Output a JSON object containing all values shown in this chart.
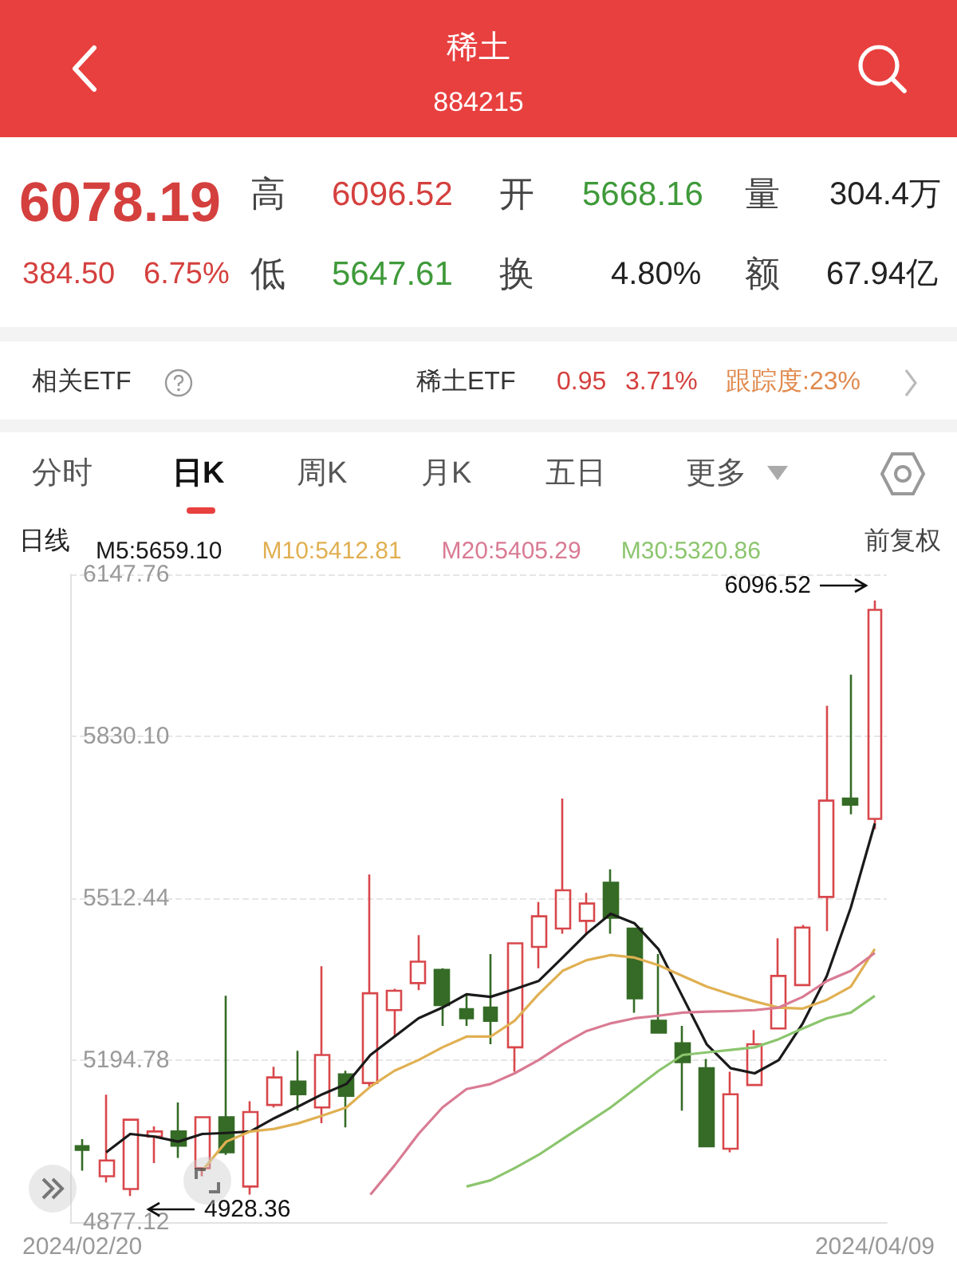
{
  "chart_data": [
    {
      "type": "other",
      "title": "稀土",
      "subtitle": "884215",
      "annotations": [
        "6078.19",
        "384.50",
        "6.75%",
        "高",
        "6096.52",
        "开",
        "5668.16",
        "量",
        "304.4万",
        "低",
        "5647.61",
        "换",
        "4.80%",
        "额",
        "67.94亿",
        "相关ETF",
        "稀土ETF",
        "0.95",
        "3.71%",
        "跟踪度:23%",
        "分时",
        "日K",
        "周K",
        "月K",
        "五日",
        "更多"
      ]
    },
    {
      "type": "candlestick",
      "categories": [
        "2024/02/20",
        null,
        null,
        null,
        null,
        null,
        null,
        null,
        null,
        null,
        null,
        null,
        null,
        null,
        null,
        null,
        null,
        null,
        null,
        null,
        null,
        null,
        null,
        null,
        null,
        null,
        null,
        null,
        null,
        null,
        null,
        null,
        null,
        "2024/04/09"
      ],
      "ohlc": [
        [
          5026,
          5040,
          4978,
          5019
        ],
        [
          4967,
          5127,
          4955,
          4998
        ],
        [
          4942,
          5078,
          4928.36,
          5078
        ],
        [
          5045,
          5065,
          4993,
          5055
        ],
        [
          5055,
          5112,
          5003,
          5027
        ],
        [
          4983,
          5083,
          4967,
          5083
        ],
        [
          5083,
          5321,
          5009,
          5014
        ],
        [
          4947,
          5114,
          4931,
          5093
        ],
        [
          5107,
          5182,
          5102,
          5161
        ],
        [
          5153,
          5213,
          5096,
          5128
        ],
        [
          5102,
          5379,
          5071,
          5205
        ],
        [
          5167,
          5174,
          5063,
          5125
        ],
        [
          5150,
          5559,
          5143,
          5326
        ],
        [
          5293,
          5335,
          5241,
          5331
        ],
        [
          5346,
          5440,
          5332,
          5388
        ],
        [
          5372,
          5375,
          5262,
          5303
        ],
        [
          5295,
          5324,
          5262,
          5277
        ],
        [
          5298,
          5403,
          5226,
          5272
        ],
        [
          5220,
          5424,
          5172,
          5424
        ],
        [
          5417,
          5505,
          5375,
          5477
        ],
        [
          5453,
          5708,
          5443,
          5528
        ],
        [
          5468,
          5523,
          5443,
          5502
        ],
        [
          5543,
          5569,
          5443,
          5474
        ],
        [
          5453,
          5453,
          5288,
          5316
        ],
        [
          5272,
          5403,
          5249,
          5249
        ],
        [
          5228,
          5262,
          5096,
          5191
        ],
        [
          5179,
          5197,
          5026,
          5026
        ],
        [
          5021,
          5172,
          5014,
          5128
        ],
        [
          5146,
          5254,
          5146,
          5226
        ],
        [
          5257,
          5434,
          5257,
          5360
        ],
        [
          5342,
          5460,
          5342,
          5455
        ],
        [
          5515,
          5890,
          5448,
          5704
        ],
        [
          5708,
          5951,
          5677,
          5696
        ],
        [
          5668.16,
          6096.52,
          5647.61,
          6078.19
        ]
      ],
      "series": [
        {
          "type": "line",
          "name": "M5:5659.10",
          "color": "#1a1a1a",
          "values": [
            null,
            5014,
            5050,
            5045,
            5035,
            5050,
            5052,
            5055,
            5081,
            5104,
            5128,
            5148,
            5205,
            5241,
            5277,
            5298,
            5324,
            5319,
            5334,
            5350,
            5396,
            5443,
            5482,
            5463,
            5412,
            5319,
            5226,
            5179,
            5169,
            5195,
            5267,
            5360,
            5494,
            5659.1
          ]
        },
        {
          "type": "line",
          "name": "M10:5412.81",
          "color": "#e0b052",
          "values": [
            null,
            null,
            null,
            null,
            null,
            4978,
            5035,
            5055,
            5060,
            5071,
            5086,
            5102,
            5143,
            5174,
            5195,
            5220,
            5241,
            5241,
            5272,
            5324,
            5370,
            5391,
            5401,
            5396,
            5381,
            5360,
            5339,
            5324,
            5310,
            5298,
            5296,
            5313,
            5339,
            5412.81
          ]
        },
        {
          "type": "line",
          "name": "M20:5405.29",
          "color": "#d97b93",
          "values": [
            null,
            null,
            null,
            null,
            null,
            null,
            null,
            null,
            null,
            null,
            null,
            null,
            4931,
            4988,
            5050,
            5102,
            5138,
            5148,
            5169,
            5195,
            5226,
            5252,
            5267,
            5277,
            5282,
            5288,
            5290,
            5291,
            5293,
            5298,
            5319,
            5350,
            5370,
            5405.29
          ]
        },
        {
          "type": "line",
          "name": "M30:5320.86",
          "color": "#8cc56e",
          "values": [
            null,
            null,
            null,
            null,
            null,
            null,
            null,
            null,
            null,
            null,
            null,
            null,
            null,
            null,
            null,
            null,
            4947,
            4959,
            4983,
            5009,
            5040,
            5071,
            5102,
            5138,
            5174,
            5205,
            5210,
            5215,
            5220,
            5236,
            5257,
            5277,
            5288,
            5320.86
          ]
        }
      ],
      "ylim": [
        4877.12,
        6147.76
      ],
      "yticks": [
        4877.12,
        5194.78,
        5512.44,
        {
          "value": 5830.1,
          "label": "5830.10"
        },
        6147.76
      ],
      "grid": "y",
      "legend": "top left",
      "marker": "none",
      "annotations": [
        "日线",
        "前复权",
        {
          "text": "6096.52",
          "x": "2024/04/09",
          "y": 6096.52
        },
        "4928.36"
      ]
    }
  ]
}
